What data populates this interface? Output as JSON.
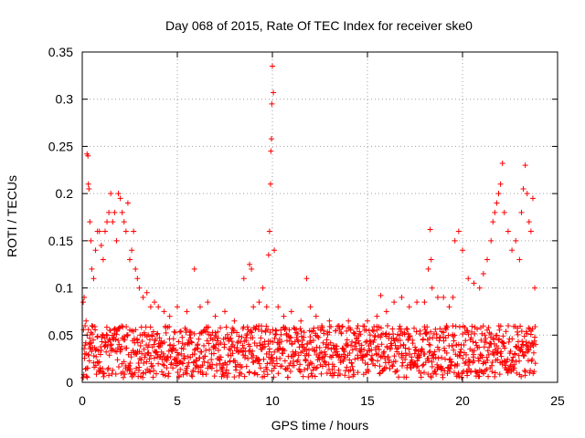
{
  "chart_data": {
    "type": "scatter",
    "title": "Day 068 of 2015, Rate Of TEC Index for receiver ske0",
    "xlabel": "GPS time / hours",
    "ylabel": "ROTI / TECUs",
    "xlim": [
      0,
      25
    ],
    "ylim": [
      0,
      0.35
    ],
    "x_ticks": [
      "0",
      "5",
      "10",
      "15",
      "20",
      "25"
    ],
    "y_ticks": [
      "0",
      "0.05",
      "0.1",
      "0.15",
      "0.2",
      "0.25",
      "0.3",
      "0.35"
    ],
    "grid": true,
    "marker": "+",
    "color": "#ff0000",
    "series": [
      {
        "x": [
          0.05,
          0.1,
          0.15,
          0.2,
          0.25,
          0.3,
          0.32,
          0.35,
          0.4,
          0.45,
          0.5,
          0.6,
          0.7,
          0.8,
          0.9,
          1.0,
          1.1,
          1.2,
          1.3,
          1.4,
          1.5,
          1.6,
          1.7,
          1.8,
          1.9,
          2.0,
          2.1,
          2.2,
          2.3,
          2.4,
          2.5,
          2.6,
          2.7,
          2.8,
          2.9,
          3.0,
          3.2,
          3.4,
          3.6,
          3.8,
          4.0,
          4.3,
          4.6,
          5.0,
          5.5,
          5.9,
          6.2,
          6.6,
          7.0,
          7.5,
          8.0,
          8.5,
          8.8,
          8.9,
          9.0,
          9.3,
          9.5,
          9.7,
          9.8,
          9.85,
          9.9,
          9.92,
          9.95,
          9.97,
          10.0,
          10.05,
          10.1,
          10.3,
          10.6,
          11.0,
          11.5,
          11.8,
          12.0,
          12.3,
          12.6,
          13.0,
          13.5,
          14.0,
          14.5,
          15.0,
          15.5,
          15.7,
          16.0,
          16.4,
          16.8,
          17.2,
          17.6,
          18.0,
          18.2,
          18.3,
          18.35,
          18.4,
          18.7,
          19.0,
          19.3,
          19.5,
          19.6,
          19.8,
          20.0,
          20.3,
          20.6,
          20.9,
          21.1,
          21.3,
          21.5,
          21.6,
          21.7,
          21.8,
          21.9,
          22.0,
          22.1,
          22.2,
          22.4,
          22.6,
          22.8,
          23.0,
          23.1,
          23.2,
          23.3,
          23.4,
          23.5,
          23.6,
          23.7,
          23.8
        ],
        "y": [
          0.085,
          0.09,
          0.06,
          0.065,
          0.242,
          0.24,
          0.21,
          0.205,
          0.17,
          0.15,
          0.12,
          0.11,
          0.14,
          0.16,
          0.16,
          0.145,
          0.13,
          0.16,
          0.17,
          0.18,
          0.2,
          0.17,
          0.18,
          0.15,
          0.2,
          0.195,
          0.18,
          0.17,
          0.16,
          0.19,
          0.13,
          0.14,
          0.16,
          0.12,
          0.11,
          0.1,
          0.09,
          0.095,
          0.08,
          0.085,
          0.08,
          0.075,
          0.07,
          0.08,
          0.075,
          0.12,
          0.08,
          0.085,
          0.07,
          0.075,
          0.065,
          0.11,
          0.125,
          0.12,
          0.08,
          0.085,
          0.1,
          0.08,
          0.135,
          0.16,
          0.21,
          0.245,
          0.258,
          0.295,
          0.335,
          0.307,
          0.14,
          0.08,
          0.07,
          0.075,
          0.065,
          0.11,
          0.08,
          0.07,
          0.06,
          0.065,
          0.06,
          0.065,
          0.06,
          0.065,
          0.07,
          0.092,
          0.075,
          0.085,
          0.09,
          0.08,
          0.085,
          0.085,
          0.12,
          0.162,
          0.13,
          0.1,
          0.09,
          0.09,
          0.08,
          0.09,
          0.15,
          0.16,
          0.14,
          0.11,
          0.105,
          0.1,
          0.115,
          0.13,
          0.15,
          0.17,
          0.18,
          0.19,
          0.2,
          0.21,
          0.232,
          0.18,
          0.16,
          0.14,
          0.15,
          0.13,
          0.18,
          0.205,
          0.23,
          0.2,
          0.17,
          0.16,
          0.195,
          0.1
        ]
      }
    ],
    "dense_band": {
      "y_range": [
        0.005,
        0.06
      ],
      "x_range": [
        0.05,
        23.85
      ]
    }
  }
}
